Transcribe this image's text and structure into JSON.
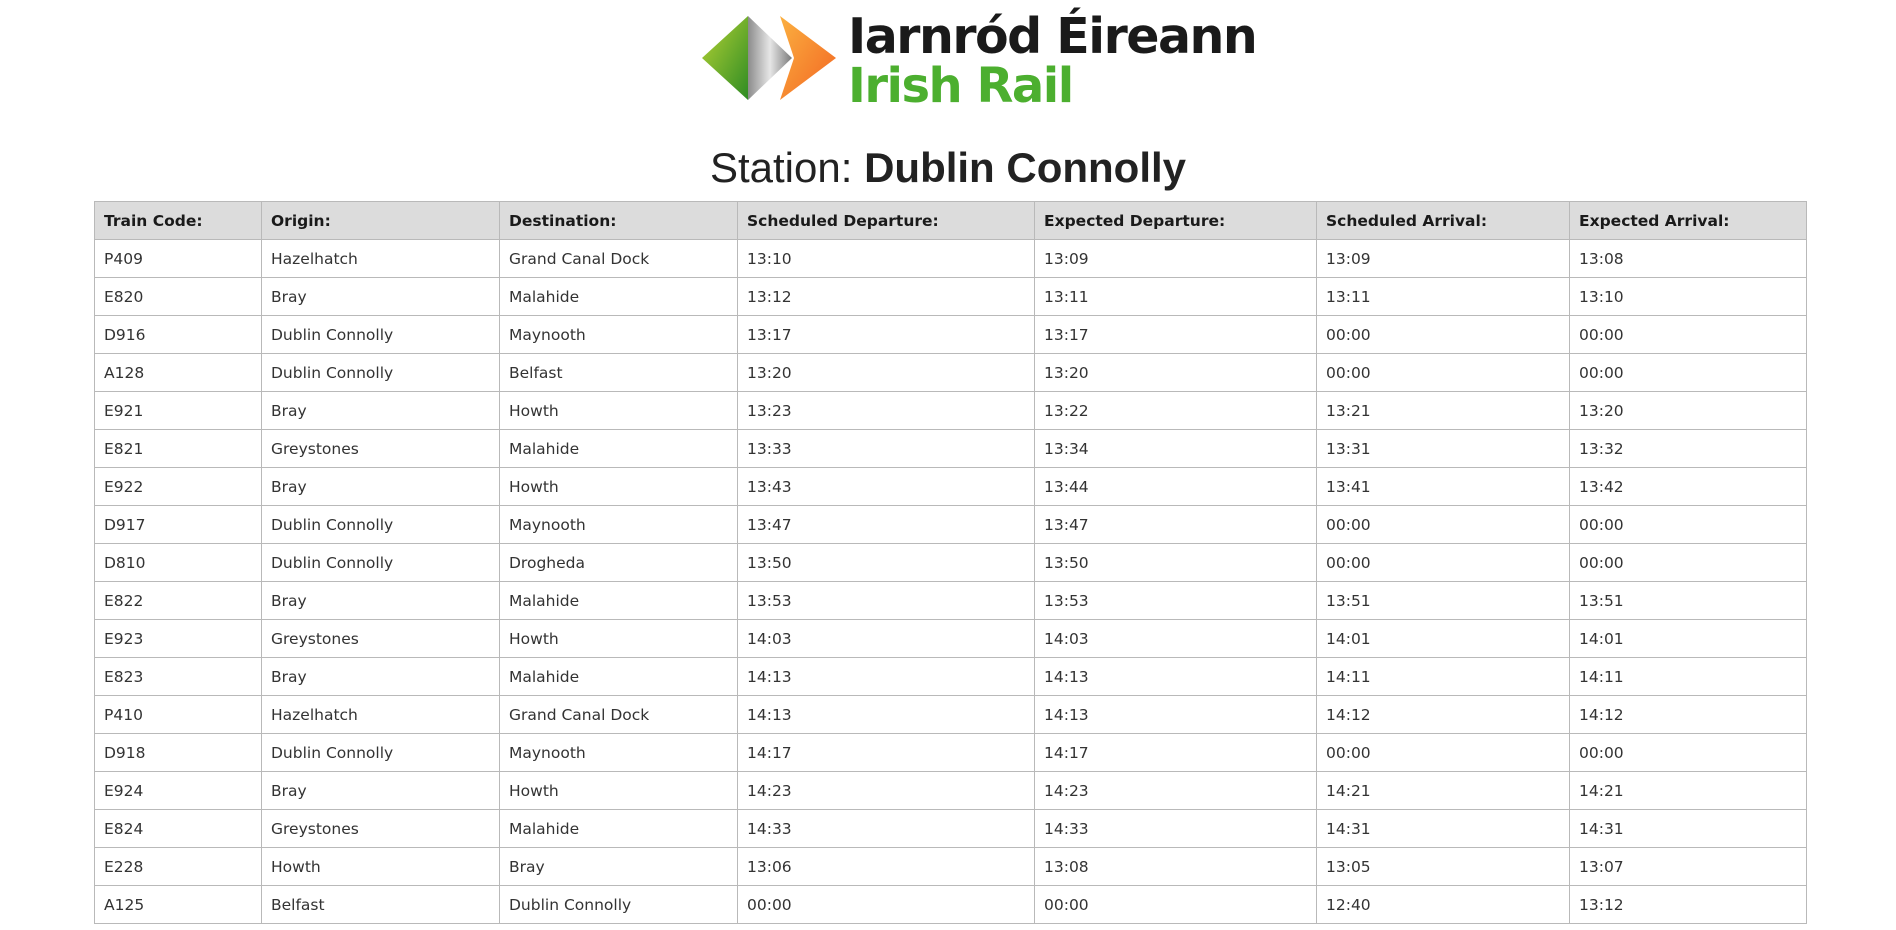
{
  "logo": {
    "line1": "Iarnród Éireann",
    "line2": "Irish Rail",
    "colors": {
      "green": "#4caf2f",
      "orange": "#f7941d",
      "grey": "#9a9a9a"
    }
  },
  "station": {
    "prefix": "Station: ",
    "name": "Dublin Connolly"
  },
  "table": {
    "headers": [
      "Train Code:",
      "Origin:",
      "Destination:",
      "Scheduled Departure:",
      "Expected Departure:",
      "Scheduled Arrival:",
      "Expected Arrival:"
    ],
    "rows": [
      [
        "P409",
        "Hazelhatch",
        "Grand Canal Dock",
        "13:10",
        "13:09",
        "13:09",
        "13:08"
      ],
      [
        "E820",
        "Bray",
        "Malahide",
        "13:12",
        "13:11",
        "13:11",
        "13:10"
      ],
      [
        "D916",
        "Dublin Connolly",
        "Maynooth",
        "13:17",
        "13:17",
        "00:00",
        "00:00"
      ],
      [
        "A128",
        "Dublin Connolly",
        "Belfast",
        "13:20",
        "13:20",
        "00:00",
        "00:00"
      ],
      [
        "E921",
        "Bray",
        "Howth",
        "13:23",
        "13:22",
        "13:21",
        "13:20"
      ],
      [
        "E821",
        "Greystones",
        "Malahide",
        "13:33",
        "13:34",
        "13:31",
        "13:32"
      ],
      [
        "E922",
        "Bray",
        "Howth",
        "13:43",
        "13:44",
        "13:41",
        "13:42"
      ],
      [
        "D917",
        "Dublin Connolly",
        "Maynooth",
        "13:47",
        "13:47",
        "00:00",
        "00:00"
      ],
      [
        "D810",
        "Dublin Connolly",
        "Drogheda",
        "13:50",
        "13:50",
        "00:00",
        "00:00"
      ],
      [
        "E822",
        "Bray",
        "Malahide",
        "13:53",
        "13:53",
        "13:51",
        "13:51"
      ],
      [
        "E923",
        "Greystones",
        "Howth",
        "14:03",
        "14:03",
        "14:01",
        "14:01"
      ],
      [
        "E823",
        "Bray",
        "Malahide",
        "14:13",
        "14:13",
        "14:11",
        "14:11"
      ],
      [
        "P410",
        "Hazelhatch",
        "Grand Canal Dock",
        "14:13",
        "14:13",
        "14:12",
        "14:12"
      ],
      [
        "D918",
        "Dublin Connolly",
        "Maynooth",
        "14:17",
        "14:17",
        "00:00",
        "00:00"
      ],
      [
        "E924",
        "Bray",
        "Howth",
        "14:23",
        "14:23",
        "14:21",
        "14:21"
      ],
      [
        "E824",
        "Greystones",
        "Malahide",
        "14:33",
        "14:33",
        "14:31",
        "14:31"
      ],
      [
        "E228",
        "Howth",
        "Bray",
        "13:06",
        "13:08",
        "13:05",
        "13:07"
      ],
      [
        "A125",
        "Belfast",
        "Dublin Connolly",
        "00:00",
        "00:00",
        "12:40",
        "13:12"
      ]
    ]
  }
}
